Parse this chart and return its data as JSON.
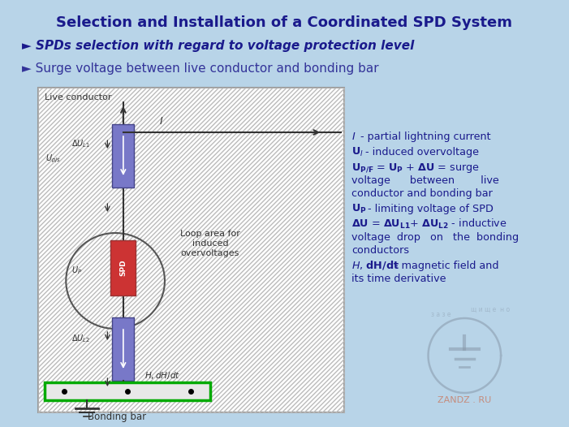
{
  "bg_color": "#b8d4e8",
  "title": "Selection and Installation of a Coordinated SPD System",
  "title_color": "#1a1a8c",
  "subtitle1": "► SPDs selection with regard to voltage protection level",
  "subtitle1_color": "#1a1a8c",
  "subtitle2": "► Surge voltage between live conductor and bonding bar",
  "subtitle2_color": "#333399",
  "diagram_bg": "white",
  "hatch_color": "#aaaaaa",
  "conductor_color": "#7070c0",
  "spd_color": "#cc3333",
  "bonding_bar_color": "#00aa00",
  "wire_color": "#333333",
  "label_color": "#333333",
  "legend_color": "#1a1a8c",
  "watermark_color": "#8899aa"
}
